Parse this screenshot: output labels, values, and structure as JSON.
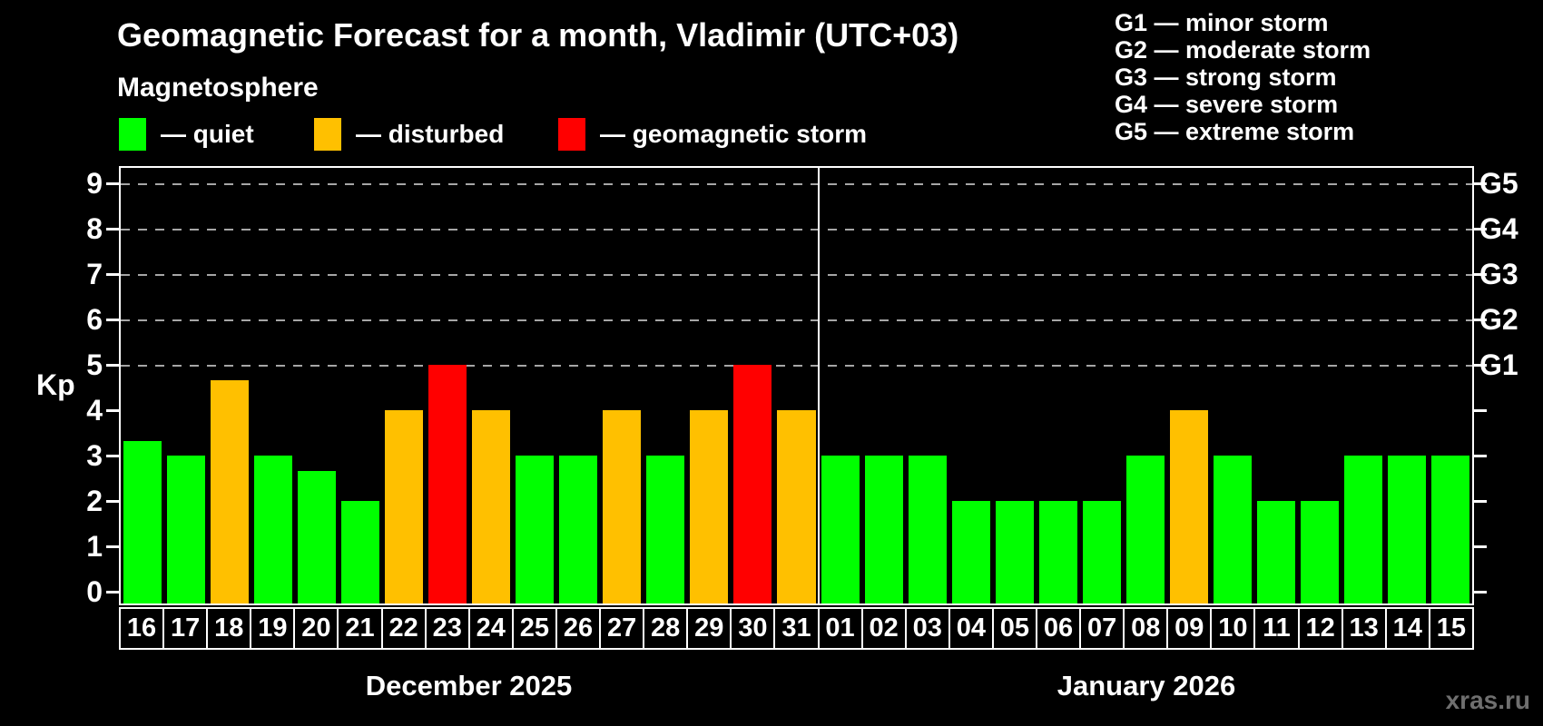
{
  "title": "Geomagnetic Forecast for a month, Vladimir (UTC+03)",
  "subtitle": "Magnetosphere",
  "legend": {
    "items": [
      {
        "key": "quiet",
        "label": "— quiet",
        "color": "#00ff00"
      },
      {
        "key": "disturbed",
        "label": "— disturbed",
        "color": "#ffc000"
      },
      {
        "key": "storm",
        "label": "— geomagnetic storm",
        "color": "#ff0000"
      }
    ]
  },
  "g_legend": [
    "G1 — minor storm",
    "G2 — moderate storm",
    "G3 — strong storm",
    "G4 — severe storm",
    "G5 — extreme storm"
  ],
  "y_axis": {
    "label": "Kp",
    "ticks": [
      0,
      1,
      2,
      3,
      4,
      5,
      6,
      7,
      8,
      9
    ]
  },
  "right_axis": {
    "labels": {
      "5": "G1",
      "6": "G2",
      "7": "G3",
      "8": "G4",
      "9": "G5"
    }
  },
  "watermark": "xras.ru",
  "chart_data": {
    "type": "bar",
    "title": "Geomagnetic Forecast for a month, Vladimir (UTC+03)",
    "ylabel": "Kp",
    "ylim": [
      0,
      9
    ],
    "grid": "dashed horizontal at Kp 5-9",
    "gridlines_at": [
      5,
      6,
      7,
      8,
      9
    ],
    "color_thresholds": {
      "disturbed_min": 4,
      "storm_min": 5
    },
    "groups": [
      {
        "month_label": "December 2025",
        "days": [
          "16",
          "17",
          "18",
          "19",
          "20",
          "21",
          "22",
          "23",
          "24",
          "25",
          "26",
          "27",
          "28",
          "29",
          "30",
          "31"
        ],
        "values": [
          3.33,
          3,
          4.67,
          3,
          2.67,
          2,
          4,
          5,
          4,
          3,
          3,
          4,
          3,
          4,
          5,
          4
        ]
      },
      {
        "month_label": "January 2026",
        "days": [
          "01",
          "02",
          "03",
          "04",
          "05",
          "06",
          "07",
          "08",
          "09",
          "10",
          "11",
          "12",
          "13",
          "14",
          "15"
        ],
        "values": [
          3,
          3,
          3,
          2,
          2,
          2,
          2,
          3,
          4,
          3,
          2,
          2,
          3,
          3,
          3
        ]
      }
    ]
  }
}
